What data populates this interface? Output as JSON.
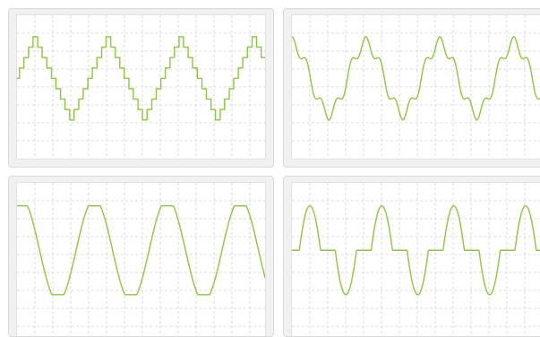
{
  "theme": {
    "line_color": "#8dc63f",
    "grid_color": "#d2d2d2"
  },
  "chart_data": [
    {
      "type": "line",
      "series": [
        {
          "name": "",
          "wave": "stepped-triangle",
          "amplitude": 1,
          "cycles": 3.4,
          "phase": 0.25,
          "steps": 8
        }
      ],
      "xlim": [
        0,
        1
      ],
      "ylim": [
        -1,
        1
      ],
      "grid": true,
      "legend": "none"
    },
    {
      "type": "line",
      "series": [
        {
          "name": "",
          "wave": "rippled-sine",
          "amplitude": 1,
          "cycles": 3.5,
          "phase": 0.25,
          "harmonic": 5,
          "harmonic_ratio": 0.2
        }
      ],
      "xlim": [
        0,
        1
      ],
      "ylim": [
        -1,
        1
      ],
      "grid": true,
      "legend": "none"
    },
    {
      "type": "line",
      "series": [
        {
          "name": "",
          "wave": "clipped-sine",
          "amplitude": 1,
          "cycles": 3.4,
          "phase": 0.19,
          "clip": 0.87
        }
      ],
      "xlim": [
        0,
        1
      ],
      "ylim": [
        -1,
        1
      ],
      "grid": true,
      "legend": "none"
    },
    {
      "type": "line",
      "series": [
        {
          "name": "",
          "wave": "dead-zone-sine",
          "amplitude": 1,
          "cycles": 3.6,
          "phase": 0,
          "dead_zone": 0.6
        }
      ],
      "xlim": [
        0,
        1
      ],
      "ylim": [
        -1,
        1
      ],
      "grid": true,
      "legend": "none"
    }
  ]
}
